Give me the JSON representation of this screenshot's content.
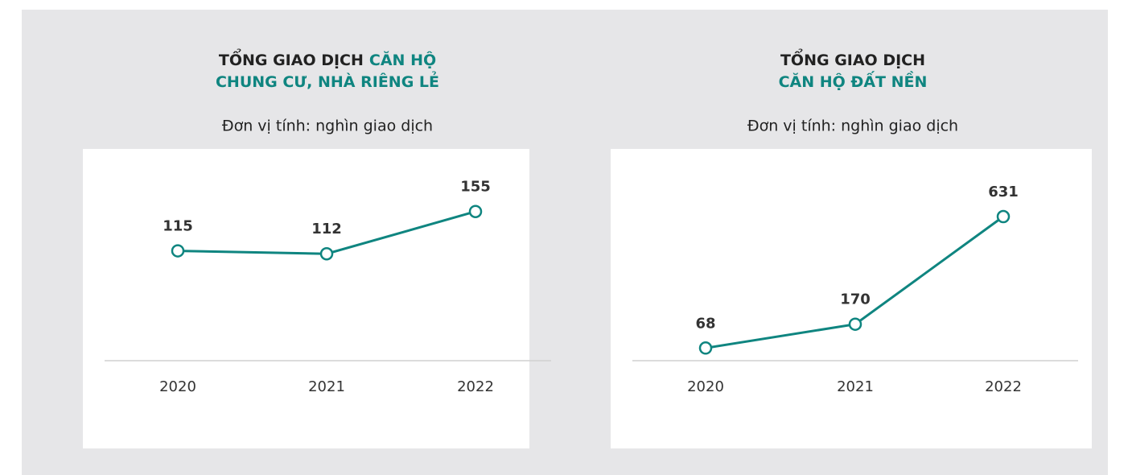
{
  "chart_data": [
    {
      "type": "line",
      "title": [
        [
          {
            "text": "TỔNG GIAO DỊCH",
            "highlight": false
          },
          {
            "text": "CĂN HỘ",
            "highlight": true
          }
        ],
        [
          {
            "text": "CHUNG CƯ, NHÀ RIÊNG LẺ",
            "highlight": true
          }
        ]
      ],
      "subtitle": "Đơn vị tính: nghìn giao dịch",
      "categories": [
        "2020",
        "2021",
        "2022"
      ],
      "values": [
        115,
        112,
        155
      ],
      "color": "#0f8580",
      "ylim": [
        0,
        190
      ]
    },
    {
      "type": "line",
      "title": [
        [
          {
            "text": "TỔNG GIAO DỊCH",
            "highlight": false
          }
        ],
        [
          {
            "text": "CĂN HỘ ĐẤT NỀN",
            "highlight": true
          }
        ]
      ],
      "subtitle": "Đơn vị tính: nghìn giao dịch",
      "categories": [
        "2020",
        "2021",
        "2022"
      ],
      "values": [
        68,
        170,
        631
      ],
      "color": "#0f8580",
      "ylim": [
        0,
        800
      ]
    }
  ]
}
